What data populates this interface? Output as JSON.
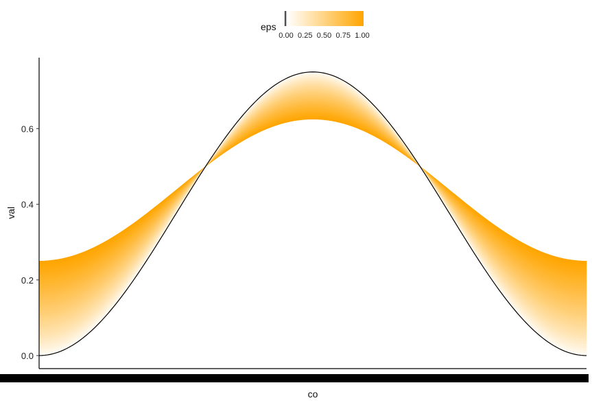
{
  "chart_data": {
    "type": "area",
    "xlabel": "co",
    "ylabel": "val",
    "ylim": [
      -0.02,
      0.79
    ],
    "xlim": [
      0,
      1
    ],
    "y_ticks": [
      0.0,
      0.2,
      0.4,
      0.6
    ],
    "y_tick_labels": [
      "0.0",
      "0.2",
      "0.4",
      "0.6"
    ],
    "x_tick_labels_note": "dense overlapping tick labels rendered as a solid black band",
    "grid": false,
    "curve": {
      "name": "",
      "description_values": {
        "x": [
          0,
          0.25,
          0.5,
          0.75,
          1
        ],
        "y": [
          0.0,
          0.375,
          0.75,
          0.375,
          0.0
        ]
      },
      "color": "#000000"
    },
    "band": {
      "eps_min": 0,
      "eps_max": 1,
      "at_eps1": {
        "x": [
          0,
          0.3,
          0.5,
          0.7,
          1
        ],
        "y": [
          0.25,
          0.5,
          0.625,
          0.5,
          0.25
        ]
      },
      "fill_low": "#ffffff",
      "fill_high": "#FFA500"
    },
    "legend": {
      "title": "eps",
      "position": "top",
      "ticks": [
        "0.00",
        "0.25",
        "0.50",
        "0.75",
        "1.00"
      ],
      "colors": [
        "#000000",
        "#ffffff",
        "#FFA500"
      ]
    }
  }
}
